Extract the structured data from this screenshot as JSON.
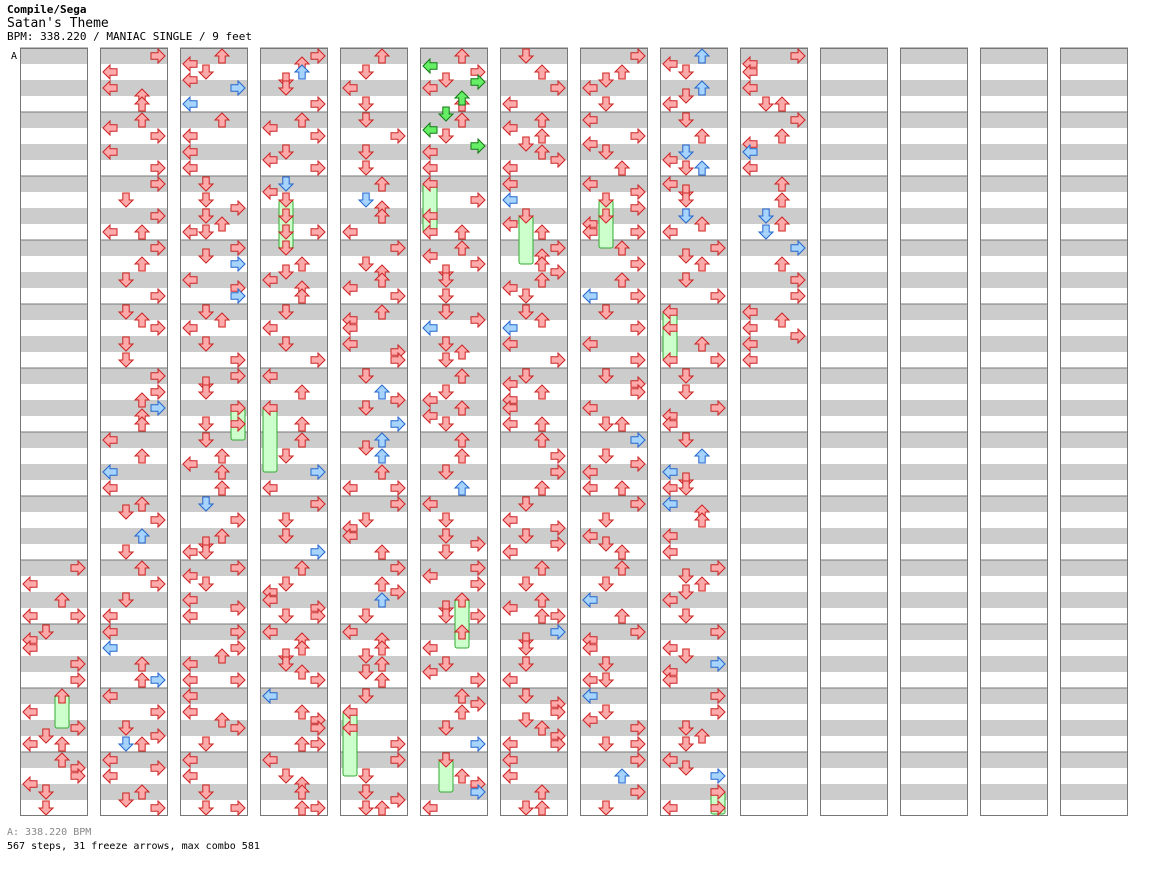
{
  "header": {
    "artist": "Compile/Sega",
    "title": "Satan's Theme",
    "meta": "BPM: 338.220 / MANIAC SINGLE / 9 feet"
  },
  "marker_label": "A",
  "footer": {
    "bpm_line": "A: 338.220 BPM",
    "stats_line": "567 steps, 31 freeze arrows, max combo 581"
  },
  "colors": {
    "band": "#cccccc",
    "tap": "#ffaaaa",
    "tap_stroke": "#cc2222",
    "quarter": "#a6d4ff",
    "quarter_stroke": "#2266cc",
    "eighth_green": "#66ee66",
    "eighth_green_stroke": "#117711",
    "freeze": "#ccffcc",
    "freeze_stroke": "#33aa33"
  },
  "chart_data": {
    "type": "step-chart",
    "columns": 14,
    "measures_per_column": 12,
    "lanes": [
      "left",
      "down",
      "up",
      "right"
    ],
    "steps": 567,
    "freeze_arrows": 31,
    "max_combo": 581,
    "bpm": 338.22
  }
}
